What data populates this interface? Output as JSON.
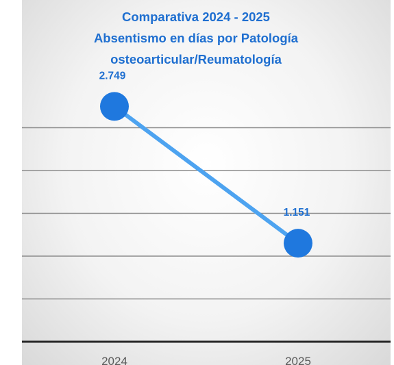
{
  "chart_data": {
    "type": "line",
    "title_lines": [
      "Comparativa 2024 - 2025",
      "Absentismo en días por Patología",
      "osteoarticular/Reumatología"
    ],
    "categories": [
      "2024",
      "2025"
    ],
    "values": [
      2749,
      1151
    ],
    "data_labels": [
      "2.749",
      "1.151"
    ],
    "xlabel": "",
    "ylabel": "",
    "ylim": [
      0,
      3000
    ],
    "grid": true,
    "legend": "none",
    "colors": {
      "line": "#4da3f0",
      "marker": "#1f78de",
      "text": "#1f6fd0",
      "grid": "#8c8c8c",
      "axis": "#262626"
    }
  }
}
